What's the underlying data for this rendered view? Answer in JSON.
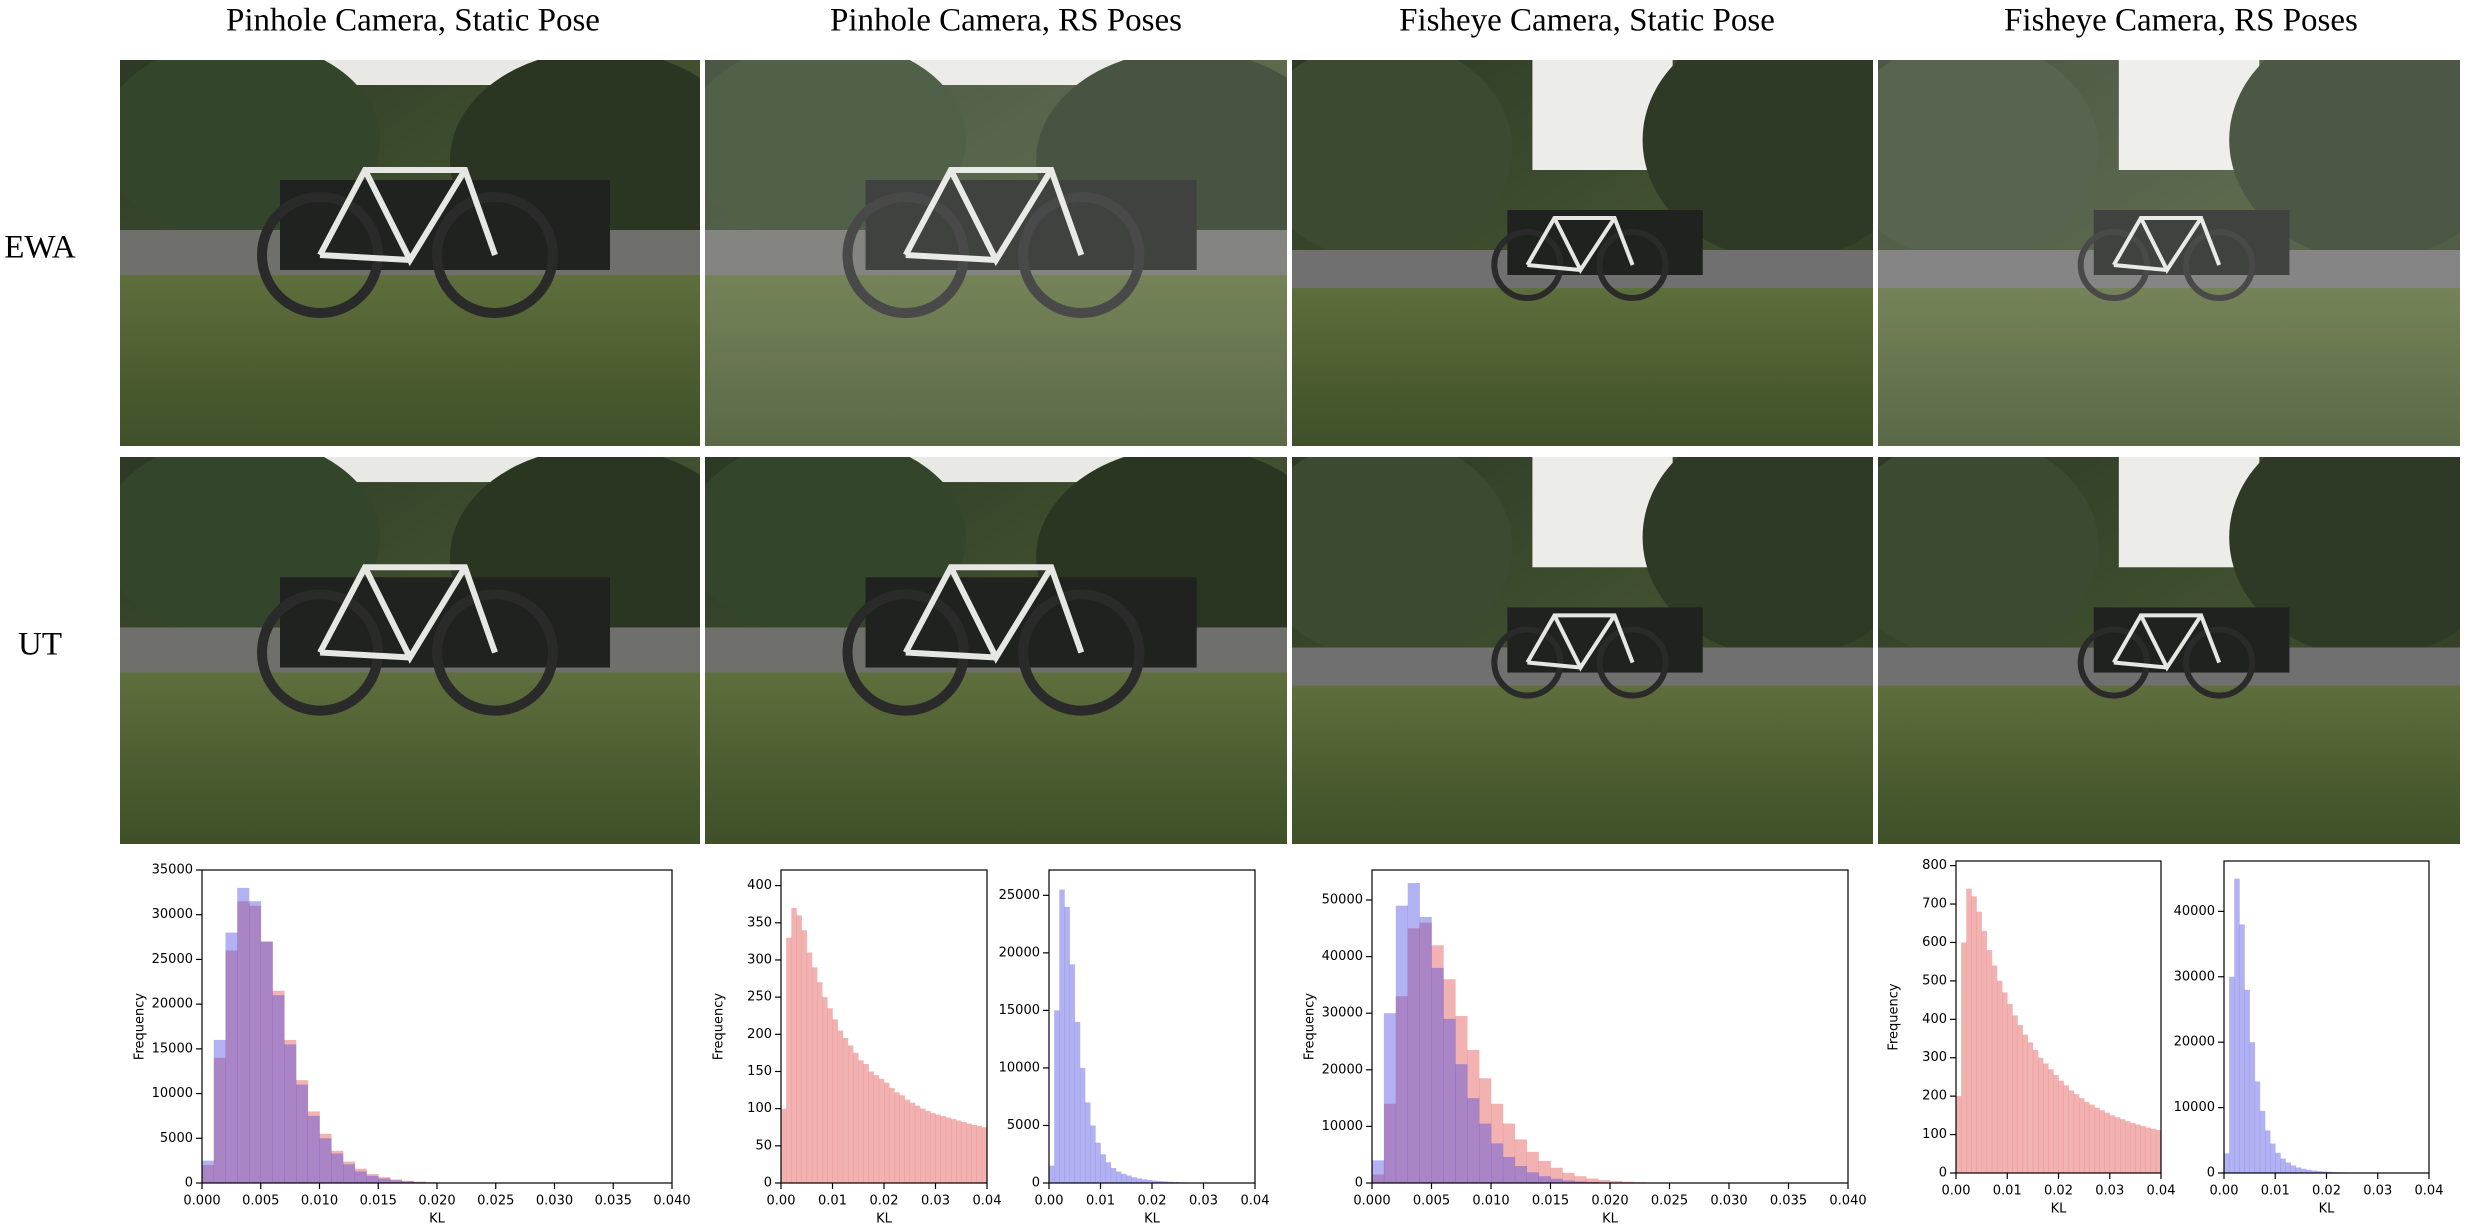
{
  "figure": {
    "column_titles": [
      "Pinhole Camera, Static Pose",
      "Pinhole Camera, RS Poses",
      "Fisheye Camera, Static Pose",
      "Fisheye Camera, RS Poses"
    ],
    "row_labels": [
      "EWA",
      "UT"
    ]
  },
  "chart_data": [
    {
      "type": "histogram",
      "x_label": "KL",
      "y_label": "Frequency",
      "bins": [
        0,
        0.001,
        0.002,
        0.003,
        0.004,
        0.005,
        0.006,
        0.007,
        0.008,
        0.009,
        0.01,
        0.011,
        0.012,
        0.013,
        0.014,
        0.015,
        0.016,
        0.017,
        0.018,
        0.019,
        0.02,
        0.021,
        0.022,
        0.023,
        0.024,
        0.025,
        0.026,
        0.027,
        0.028,
        0.029,
        0.03,
        0.031,
        0.032,
        0.033,
        0.034,
        0.035,
        0.036,
        0.037,
        0.038,
        0.039,
        0.04
      ],
      "series": [
        {
          "color": "#e04848",
          "values": [
            2000,
            14000,
            26000,
            31500,
            31000,
            27000,
            21500,
            16000,
            11500,
            8000,
            5500,
            3600,
            2400,
            1600,
            1000,
            650,
            400,
            250,
            160,
            100,
            60,
            40,
            25,
            15,
            10,
            6,
            4,
            2,
            1,
            1,
            0,
            0,
            0,
            0,
            0,
            0,
            0,
            0,
            0,
            0
          ]
        },
        {
          "color": "#4848e0",
          "values": [
            2500,
            16000,
            28000,
            33000,
            31500,
            27000,
            21000,
            15500,
            11000,
            7500,
            5000,
            3300,
            2100,
            1300,
            800,
            500,
            300,
            180,
            100,
            60,
            35,
            20,
            10,
            6,
            3,
            2,
            1,
            0,
            0,
            0,
            0,
            0,
            0,
            0,
            0,
            0,
            0,
            0,
            0,
            0
          ]
        }
      ],
      "alpha": 0.42,
      "xlim": [
        0,
        0.04
      ],
      "ylim": [
        0,
        35000
      ],
      "xticks": [
        {
          "value": 0,
          "label": "0.000"
        },
        0.005,
        {
          "value": 0.01,
          "label": "0.010"
        },
        0.015,
        {
          "value": 0.02,
          "label": "0.020"
        },
        0.025,
        {
          "value": 0.03,
          "label": "0.030"
        },
        0.035,
        {
          "value": 0.04,
          "label": "0.040"
        }
      ],
      "yticks": [
        0,
        5000,
        10000,
        15000,
        20000,
        25000,
        30000,
        35000
      ]
    },
    {
      "type": "histogram",
      "x_label": "KL",
      "y_label": "Frequency",
      "bins": [
        0,
        0.001,
        0.002,
        0.003,
        0.004,
        0.005,
        0.006,
        0.007,
        0.008,
        0.009,
        0.01,
        0.011,
        0.012,
        0.013,
        0.014,
        0.015,
        0.016,
        0.017,
        0.018,
        0.019,
        0.02,
        0.021,
        0.022,
        0.023,
        0.024,
        0.025,
        0.026,
        0.027,
        0.028,
        0.029,
        0.03,
        0.031,
        0.032,
        0.033,
        0.034,
        0.035,
        0.036,
        0.037,
        0.038,
        0.039,
        0.04
      ],
      "series": [
        {
          "color": "#e04848",
          "values": [
            100,
            330,
            370,
            360,
            340,
            310,
            290,
            270,
            250,
            235,
            220,
            205,
            195,
            185,
            175,
            165,
            160,
            150,
            145,
            140,
            135,
            128,
            122,
            118,
            112,
            108,
            104,
            100,
            97,
            94,
            92,
            90,
            88,
            86,
            84,
            82,
            80,
            78,
            77,
            75
          ]
        }
      ],
      "alpha": 0.42,
      "xlim": [
        0,
        0.04
      ],
      "ylim": [
        0,
        421
      ],
      "xticks": [
        {
          "value": 0,
          "label": "0.00"
        },
        0.01,
        0.02,
        0.03,
        0.04
      ],
      "yticks": [
        0,
        50,
        100,
        150,
        200,
        250,
        300,
        350,
        400
      ]
    },
    {
      "type": "histogram",
      "x_label": "KL",
      "bins": [
        0,
        0.001,
        0.002,
        0.003,
        0.004,
        0.005,
        0.006,
        0.007,
        0.008,
        0.009,
        0.01,
        0.011,
        0.012,
        0.013,
        0.014,
        0.015,
        0.016,
        0.017,
        0.018,
        0.019,
        0.02,
        0.021,
        0.022,
        0.023,
        0.024,
        0.025,
        0.026,
        0.027,
        0.028,
        0.029,
        0.03,
        0.031,
        0.032,
        0.033,
        0.034,
        0.035,
        0.036,
        0.037,
        0.038,
        0.039,
        0.04
      ],
      "series": [
        {
          "color": "#4848e0",
          "values": [
            1500,
            15000,
            25500,
            24000,
            19000,
            14000,
            10000,
            7000,
            5000,
            3500,
            2500,
            1800,
            1300,
            1000,
            800,
            650,
            500,
            400,
            320,
            260,
            210,
            170,
            140,
            110,
            90,
            70,
            55,
            45,
            35,
            28,
            22,
            18,
            14,
            11,
            9,
            7,
            5,
            4,
            3,
            2
          ]
        }
      ],
      "alpha": 0.42,
      "xlim": [
        0,
        0.04
      ],
      "ylim": [
        0,
        27200
      ],
      "xticks": [
        {
          "value": 0,
          "label": "0.00"
        },
        0.01,
        0.02,
        0.03,
        0.04
      ],
      "yticks": [
        0,
        5000,
        10000,
        15000,
        20000,
        25000
      ]
    },
    {
      "type": "histogram",
      "x_label": "KL",
      "y_label": "Frequency",
      "bins": [
        0,
        0.001,
        0.002,
        0.003,
        0.004,
        0.005,
        0.006,
        0.007,
        0.008,
        0.009,
        0.01,
        0.011,
        0.012,
        0.013,
        0.014,
        0.015,
        0.016,
        0.017,
        0.018,
        0.019,
        0.02,
        0.021,
        0.022,
        0.023,
        0.024,
        0.025,
        0.026,
        0.027,
        0.028,
        0.029,
        0.03,
        0.031,
        0.032,
        0.033,
        0.034,
        0.035,
        0.036,
        0.037,
        0.038,
        0.039,
        0.04
      ],
      "series": [
        {
          "color": "#e04848",
          "values": [
            1500,
            14000,
            33000,
            45000,
            46000,
            42000,
            36000,
            29500,
            23500,
            18500,
            14000,
            10500,
            7700,
            5500,
            3900,
            2700,
            1800,
            1200,
            800,
            520,
            340,
            220,
            140,
            90,
            55,
            35,
            22,
            14,
            8,
            5,
            3,
            2,
            1,
            0,
            0,
            0,
            0,
            0,
            0,
            0
          ]
        },
        {
          "color": "#4848e0",
          "values": [
            4000,
            30000,
            49000,
            53000,
            47000,
            38000,
            29000,
            21000,
            15000,
            10500,
            7000,
            4600,
            3000,
            1900,
            1200,
            750,
            450,
            280,
            170,
            100,
            60,
            35,
            20,
            12,
            7,
            4,
            2,
            1,
            0,
            0,
            0,
            0,
            0,
            0,
            0,
            0,
            0,
            0,
            0,
            0
          ]
        }
      ],
      "alpha": 0.42,
      "xlim": [
        0,
        0.04
      ],
      "ylim": [
        0,
        55300
      ],
      "xticks": [
        {
          "value": 0,
          "label": "0.000"
        },
        0.005,
        {
          "value": 0.01,
          "label": "0.010"
        },
        0.015,
        {
          "value": 0.02,
          "label": "0.020"
        },
        0.025,
        {
          "value": 0.03,
          "label": "0.030"
        },
        0.035,
        {
          "value": 0.04,
          "label": "0.040"
        }
      ],
      "yticks": [
        0,
        10000,
        20000,
        30000,
        40000,
        50000
      ]
    },
    {
      "type": "histogram",
      "x_label": "KL",
      "y_label": "Frequency",
      "bins": [
        0,
        0.001,
        0.002,
        0.003,
        0.004,
        0.005,
        0.006,
        0.007,
        0.008,
        0.009,
        0.01,
        0.011,
        0.012,
        0.013,
        0.014,
        0.015,
        0.016,
        0.017,
        0.018,
        0.019,
        0.02,
        0.021,
        0.022,
        0.023,
        0.024,
        0.025,
        0.026,
        0.027,
        0.028,
        0.029,
        0.03,
        0.031,
        0.032,
        0.033,
        0.034,
        0.035,
        0.036,
        0.037,
        0.038,
        0.039,
        0.04
      ],
      "series": [
        {
          "color": "#e04848",
          "values": [
            200,
            600,
            740,
            720,
            680,
            630,
            580,
            540,
            500,
            470,
            440,
            410,
            385,
            360,
            340,
            320,
            300,
            285,
            270,
            255,
            240,
            228,
            215,
            205,
            195,
            185,
            178,
            170,
            163,
            157,
            150,
            145,
            140,
            135,
            130,
            126,
            122,
            118,
            115,
            112
          ]
        }
      ],
      "alpha": 0.42,
      "xlim": [
        0,
        0.04
      ],
      "ylim": [
        0,
        812
      ],
      "xticks": [
        {
          "value": 0,
          "label": "0.00"
        },
        0.01,
        0.02,
        0.03,
        0.04
      ],
      "yticks": [
        0,
        100,
        200,
        300,
        400,
        500,
        600,
        700,
        800
      ]
    },
    {
      "type": "histogram",
      "x_label": "KL",
      "bins": [
        0,
        0.001,
        0.002,
        0.003,
        0.004,
        0.005,
        0.006,
        0.007,
        0.008,
        0.009,
        0.01,
        0.011,
        0.012,
        0.013,
        0.014,
        0.015,
        0.016,
        0.017,
        0.018,
        0.019,
        0.02,
        0.021,
        0.022,
        0.023,
        0.024,
        0.025,
        0.026,
        0.027,
        0.028,
        0.029,
        0.03,
        0.031,
        0.032,
        0.033,
        0.034,
        0.035,
        0.036,
        0.037,
        0.038,
        0.039,
        0.04
      ],
      "series": [
        {
          "color": "#4848e0",
          "values": [
            3000,
            30000,
            45000,
            38000,
            28000,
            20000,
            14000,
            9500,
            6500,
            4500,
            3100,
            2200,
            1600,
            1150,
            850,
            650,
            500,
            380,
            300,
            230,
            180,
            140,
            110,
            90,
            70,
            55,
            45,
            36,
            29,
            23,
            18,
            14,
            11,
            9,
            7,
            5,
            4,
            3,
            2,
            1
          ]
        }
      ],
      "alpha": 0.42,
      "xlim": [
        0,
        0.04
      ],
      "ylim": [
        0,
        47700
      ],
      "xticks": [
        {
          "value": 0,
          "label": "0.00"
        },
        0.01,
        0.02,
        0.03,
        0.04
      ],
      "yticks": [
        0,
        10000,
        20000,
        30000,
        40000
      ]
    }
  ]
}
